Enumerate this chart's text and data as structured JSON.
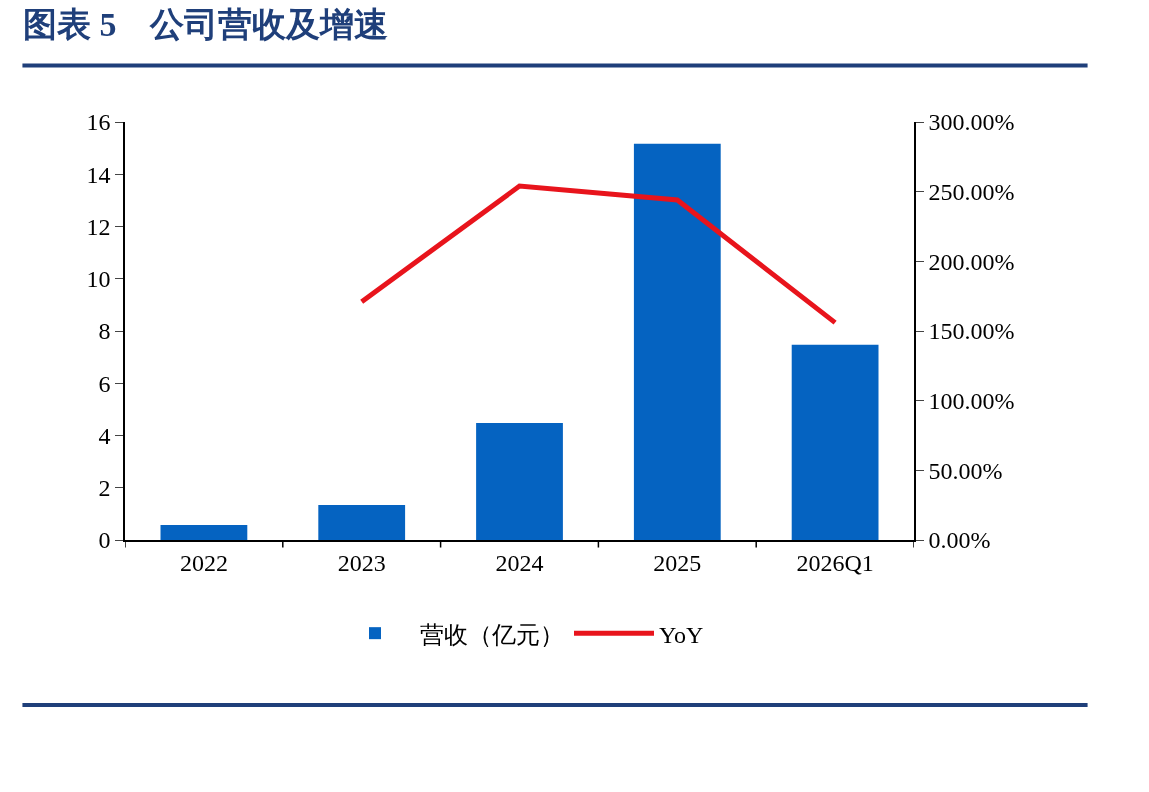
{
  "chart_data": {
    "type": "bar",
    "title": "图表 5　公司营收及增速",
    "categories": [
      "2022",
      "2023",
      "2024",
      "2025",
      "2026Q1"
    ],
    "series": [
      {
        "name": "营收（亿元）",
        "color": "#0563c1",
        "values": [
          0.57,
          1.34,
          4.48,
          15.17,
          7.47
        ]
      },
      {
        "name": "YoY",
        "type": "line",
        "axis": "y2",
        "color": "#e8141c",
        "marker": "none",
        "line_style": "solid",
        "values": [
          null,
          171,
          254,
          244,
          156
        ]
      }
    ],
    "ylim": [
      0,
      16
    ],
    "yticks": [
      0,
      2,
      4,
      6,
      8,
      10,
      12,
      14,
      16
    ],
    "y2lim": [
      0,
      300
    ],
    "y2ticks": [
      {
        "value": 0,
        "label": "0.00%"
      },
      {
        "value": 50,
        "label": "50.00%"
      },
      {
        "value": 100,
        "label": "100.00%"
      },
      {
        "value": 150,
        "label": "150.00%"
      },
      {
        "value": 200,
        "label": "200.00%"
      },
      {
        "value": 250,
        "label": "250.00%"
      },
      {
        "value": 300,
        "label": "300.00%"
      }
    ],
    "grid": false,
    "legend": "bottom"
  }
}
